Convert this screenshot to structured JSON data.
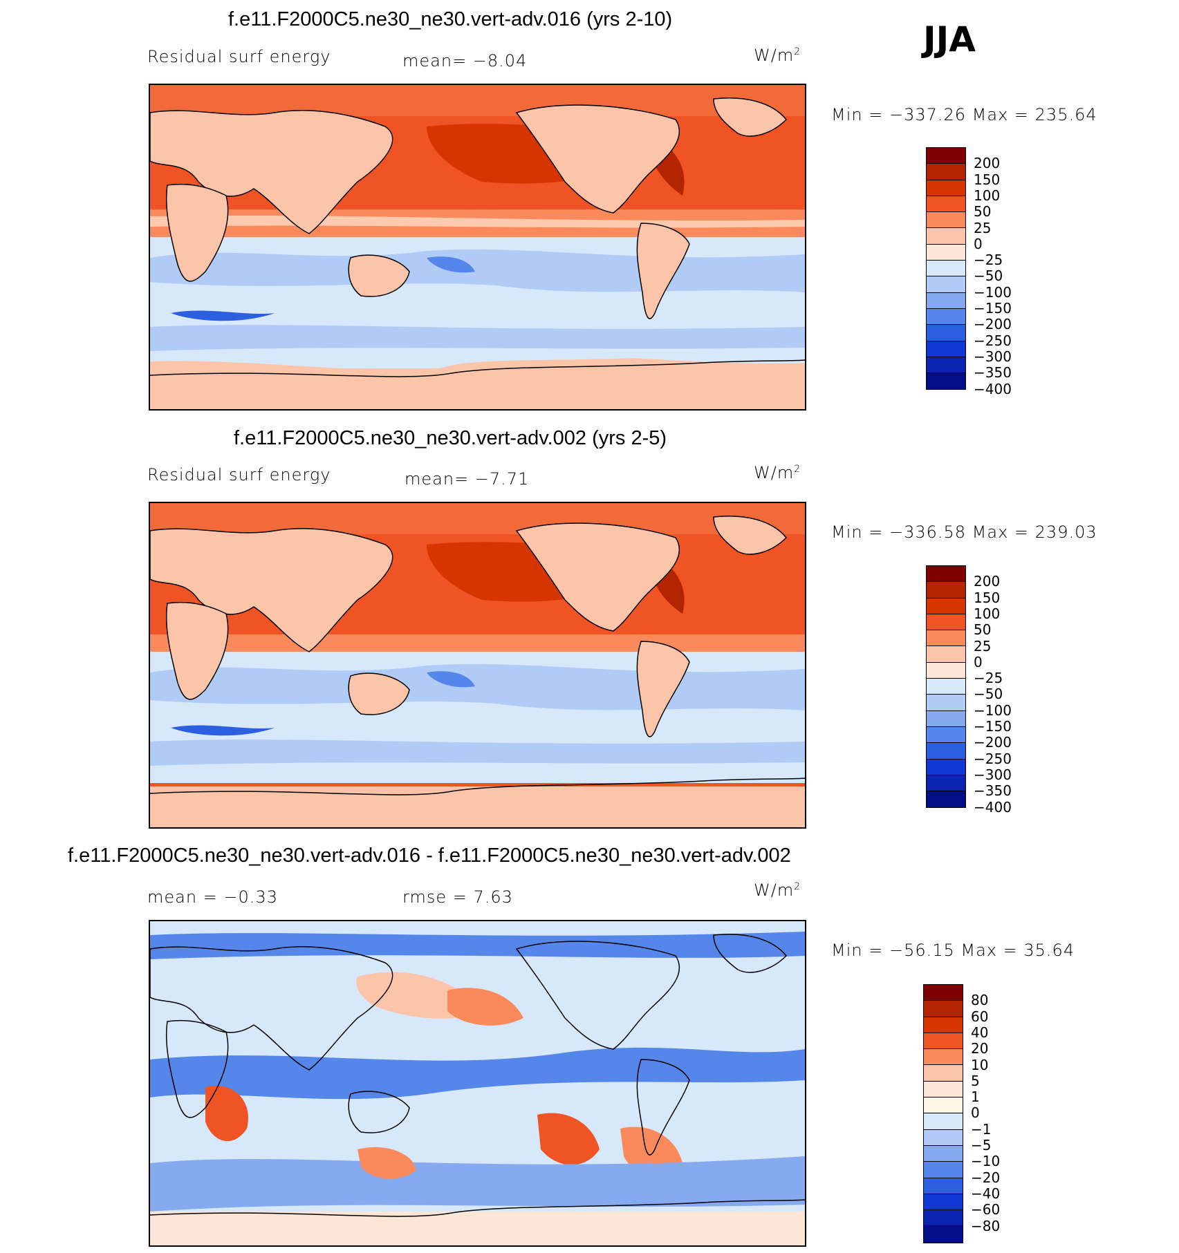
{
  "season": "JJA",
  "units": "W/m",
  "units_exp": "2",
  "panels": [
    {
      "title": "f.e11.F2000C5.ne30_ne30.vert-adv.016 (yrs 2-10)",
      "left_label": "Residual surf energy",
      "center_label": "mean=   −8.04",
      "minmax": "Min = −337.26 Max = 235.64",
      "colorbar": {
        "colors": [
          "#7f0000",
          "#b32400",
          "#d73500",
          "#f05424",
          "#fa8a5c",
          "#fcc4a8",
          "#fde6d6",
          "#d7e8fb",
          "#b0cbf6",
          "#86aaf0",
          "#5586ea",
          "#2b5fe0",
          "#1038d2",
          "#0a24b0",
          "#020d86"
        ],
        "labels": [
          "200",
          "150",
          "100",
          "50",
          "25",
          "0",
          "−25",
          "−50",
          "−100",
          "−150",
          "−200",
          "−250",
          "−300",
          "−350",
          "−400"
        ]
      }
    },
    {
      "title": "f.e11.F2000C5.ne30_ne30.vert-adv.002 (yrs 2-5)",
      "left_label": "Residual surf energy",
      "center_label": "mean=   −7.71",
      "minmax": "Min = −336.58 Max = 239.03",
      "colorbar": {
        "colors": [
          "#7f0000",
          "#b32400",
          "#d73500",
          "#f05424",
          "#fa8a5c",
          "#fcc4a8",
          "#fde6d6",
          "#d7e8fb",
          "#b0cbf6",
          "#86aaf0",
          "#5586ea",
          "#2b5fe0",
          "#1038d2",
          "#0a24b0",
          "#020d86"
        ],
        "labels": [
          "200",
          "150",
          "100",
          "50",
          "25",
          "0",
          "−25",
          "−50",
          "−100",
          "−150",
          "−200",
          "−250",
          "−300",
          "−350",
          "−400"
        ]
      }
    },
    {
      "title": "f.e11.F2000C5.ne30_ne30.vert-adv.016 - f.e11.F2000C5.ne30_ne30.vert-adv.002",
      "left_label": "mean =   −0.33",
      "center_label": "rmse =    7.63",
      "minmax": "Min = −56.15 Max =  35.64",
      "colorbar": {
        "colors": [
          "#7f0000",
          "#b32400",
          "#d73500",
          "#f05424",
          "#fa8a5c",
          "#fcc4a8",
          "#fde6d6",
          "#fff4e6",
          "#d7e8fb",
          "#b0cbf6",
          "#86aaf0",
          "#5586ea",
          "#2b5fe0",
          "#1038d2",
          "#0a24b0",
          "#020d86"
        ],
        "labels": [
          "80",
          "60",
          "40",
          "20",
          "10",
          "5",
          "1",
          "0",
          "−1",
          "−5",
          "−10",
          "−20",
          "−40",
          "−60",
          "−80"
        ]
      }
    }
  ]
}
